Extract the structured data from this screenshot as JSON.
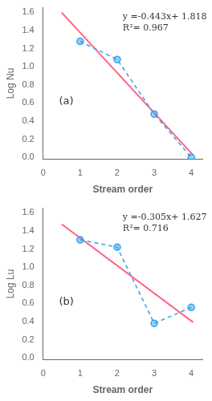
{
  "chart_data": [
    {
      "type": "scatter",
      "xlabel": "Stream order",
      "ylabel": "Log Nu",
      "annotations": [
        "(a)",
        "y =-0.443x+ 1.818",
        "R²= 0.967"
      ],
      "series": [
        {
          "type": "line",
          "x": [
            1,
            2,
            3,
            4
          ],
          "values": [
            1.279,
            1.079,
            0.477,
            0.0
          ],
          "line_style": "dashed",
          "marker": "circle"
        },
        {
          "type": "line",
          "x": [
            0.5,
            4.05
          ],
          "values": [
            1.5965,
            0.02385
          ],
          "line_style": "solid",
          "marker": "none"
        }
      ],
      "xlim": [
        0,
        4.3
      ],
      "xticks": [
        0,
        1,
        2,
        3,
        4
      ],
      "ylim": [
        -0.02,
        1.65
      ],
      "yticks": [
        {
          "value": 0,
          "label": "0.0"
        },
        0.2,
        0.4,
        0.6,
        0.8,
        {
          "value": 1,
          "label": "1.0"
        },
        1.2,
        1.4,
        1.6
      ],
      "grid": false
    },
    {
      "type": "scatter",
      "xlabel": "Stream order",
      "ylabel": "Log Lu",
      "annotations": [
        "(b)",
        "y =-0.305x+ 1.627",
        "R²= 0.716"
      ],
      "series": [
        {
          "type": "line",
          "x": [
            1,
            2,
            3,
            4
          ],
          "values": [
            1.301,
            1.22,
            0.38,
            0.556
          ],
          "line_style": "dashed",
          "marker": "circle"
        },
        {
          "type": "line",
          "x": [
            0.5,
            4.05
          ],
          "values": [
            1.4745,
            0.39175
          ],
          "line_style": "solid",
          "marker": "none"
        }
      ],
      "xlim": [
        0,
        4.3
      ],
      "xticks": [
        0,
        1,
        2,
        3,
        4
      ],
      "ylim": [
        -0.02,
        1.65
      ],
      "yticks": [
        {
          "value": 0,
          "label": "0.0"
        },
        0.2,
        0.4,
        0.6,
        0.8,
        {
          "value": 1,
          "label": "1.0"
        },
        1.2,
        1.4,
        1.6
      ],
      "grid": false
    }
  ]
}
